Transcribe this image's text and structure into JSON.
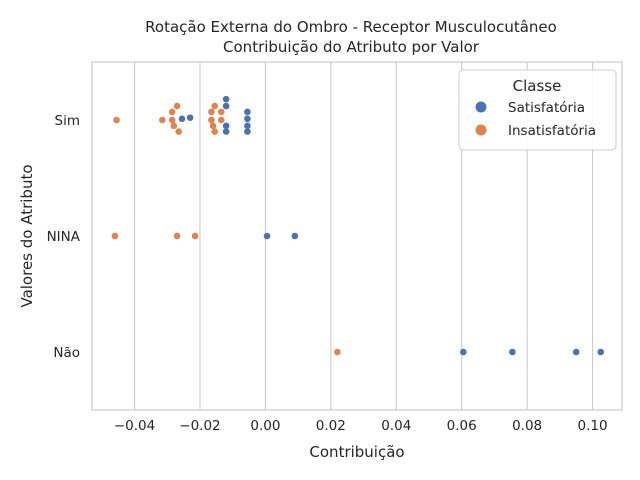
{
  "chart_data": {
    "type": "scatter",
    "title": [
      "Rotação Externa do Ombro - Receptor Musculocutâneo",
      "Contribuição do Atributo por Valor"
    ],
    "xlabel": "Contribuição",
    "ylabel": "Valores do Atributo",
    "xlim": [
      -0.053,
      0.109
    ],
    "x_ticks": [
      -0.04,
      -0.02,
      0.0,
      0.02,
      0.04,
      0.06,
      0.08,
      0.1
    ],
    "x_tick_labels": [
      "−0.04",
      "−0.02",
      "0.00",
      "0.02",
      "0.04",
      "0.06",
      "0.08",
      "0.10"
    ],
    "categories": [
      "Sim",
      "NINA",
      "Não"
    ],
    "grid": true,
    "legend": {
      "title": "Classe",
      "placement": "top-right",
      "entries": [
        "Satisfatória",
        "Insatisfatória"
      ]
    },
    "series": [
      {
        "name": "Satisfatória",
        "color": "#4c72b0",
        "points": [
          {
            "category": "Sim",
            "x": -0.012,
            "jitter": -0.18
          },
          {
            "category": "Sim",
            "x": -0.012,
            "jitter": -0.12
          },
          {
            "category": "Sim",
            "x": -0.0055,
            "jitter": -0.07
          },
          {
            "category": "Sim",
            "x": -0.0055,
            "jitter": -0.01
          },
          {
            "category": "Sim",
            "x": -0.023,
            "jitter": -0.02
          },
          {
            "category": "Sim",
            "x": -0.0255,
            "jitter": -0.01
          },
          {
            "category": "Sim",
            "x": -0.0055,
            "jitter": 0.05
          },
          {
            "category": "Sim",
            "x": -0.012,
            "jitter": 0.05
          },
          {
            "category": "Sim",
            "x": -0.0055,
            "jitter": 0.1
          },
          {
            "category": "Sim",
            "x": -0.012,
            "jitter": 0.1
          },
          {
            "category": "NINA",
            "x": 0.0005,
            "jitter": 0.0
          },
          {
            "category": "NINA",
            "x": 0.009,
            "jitter": 0.0
          },
          {
            "category": "Não",
            "x": 0.0605,
            "jitter": 0.0
          },
          {
            "category": "Não",
            "x": 0.0755,
            "jitter": 0.0
          },
          {
            "category": "Não",
            "x": 0.095,
            "jitter": 0.0
          },
          {
            "category": "Não",
            "x": 0.1025,
            "jitter": 0.0
          }
        ]
      },
      {
        "name": "Insatisfatória",
        "color": "#dd8452",
        "points": [
          {
            "category": "Sim",
            "x": -0.027,
            "jitter": -0.12
          },
          {
            "category": "Sim",
            "x": -0.0155,
            "jitter": -0.12
          },
          {
            "category": "Sim",
            "x": -0.0285,
            "jitter": -0.07
          },
          {
            "category": "Sim",
            "x": -0.0165,
            "jitter": -0.07
          },
          {
            "category": "Sim",
            "x": -0.0135,
            "jitter": -0.07
          },
          {
            "category": "Sim",
            "x": -0.0455,
            "jitter": 0.0
          },
          {
            "category": "Sim",
            "x": -0.0315,
            "jitter": 0.0
          },
          {
            "category": "Sim",
            "x": -0.0285,
            "jitter": 0.0
          },
          {
            "category": "Sim",
            "x": -0.0165,
            "jitter": 0.0
          },
          {
            "category": "Sim",
            "x": -0.0135,
            "jitter": 0.0
          },
          {
            "category": "Sim",
            "x": -0.028,
            "jitter": 0.05
          },
          {
            "category": "Sim",
            "x": -0.016,
            "jitter": 0.05
          },
          {
            "category": "Sim",
            "x": -0.0265,
            "jitter": 0.1
          },
          {
            "category": "Sim",
            "x": -0.0155,
            "jitter": 0.1
          },
          {
            "category": "NINA",
            "x": -0.046,
            "jitter": 0.0
          },
          {
            "category": "NINA",
            "x": -0.027,
            "jitter": 0.0
          },
          {
            "category": "NINA",
            "x": -0.0215,
            "jitter": 0.0
          },
          {
            "category": "Não",
            "x": 0.022,
            "jitter": 0.0
          }
        ]
      }
    ]
  }
}
